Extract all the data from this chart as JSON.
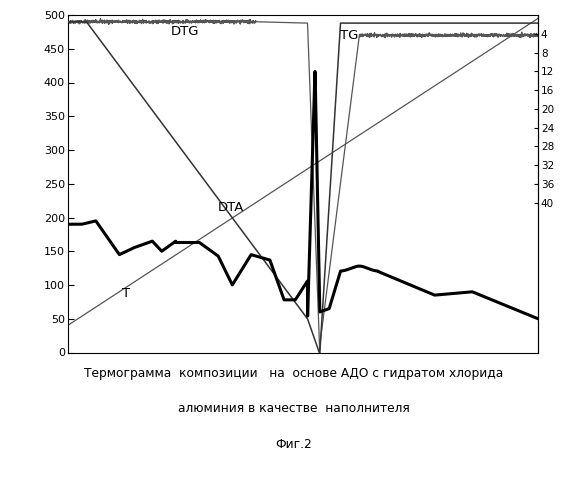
{
  "title_line1": "Термограмма  композиции   на  основе АДО с гидратом хлорида",
  "title_line2": "алюминия в качестве  наполнителя",
  "title_line3": "Фиг.2",
  "left_yticks": [
    0,
    50,
    100,
    150,
    200,
    250,
    300,
    350,
    400,
    450,
    500
  ],
  "right_yticks_labels": [
    4,
    8,
    12,
    16,
    20,
    24,
    28,
    32,
    36,
    40
  ],
  "right_yticks_pos": [
    472,
    444,
    417,
    389,
    361,
    333,
    306,
    278,
    250,
    222
  ],
  "bg_color": "#ffffff",
  "label_DTG": "DTG",
  "label_TG": "TG",
  "label_DTA": "DTA",
  "label_T": "T"
}
